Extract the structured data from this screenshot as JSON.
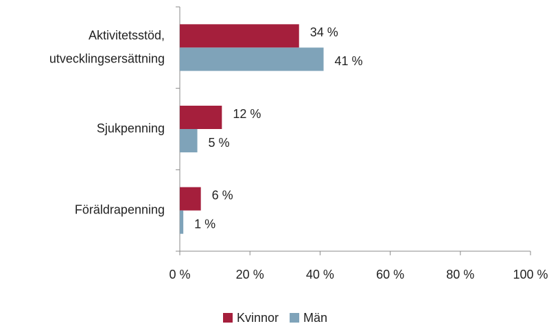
{
  "chart_data": {
    "type": "hbar",
    "categories": [
      "Aktivitetsstöd,\nutvecklingsersättning",
      "Sjukpenning",
      "Föräldrapenning"
    ],
    "series": [
      {
        "name": "Kvinnor",
        "color": "#a51f3c",
        "values": [
          34,
          12,
          6
        ],
        "value_labels": [
          "34 %",
          "12 %",
          "6 %"
        ]
      },
      {
        "name": "Män",
        "color": "#7fa3b9",
        "values": [
          41,
          5,
          1
        ],
        "value_labels": [
          "41 %",
          "5 %",
          "1 %"
        ]
      }
    ],
    "xlim": [
      0,
      100
    ],
    "xticks": [
      {
        "value": 0,
        "label": "0 %"
      },
      {
        "value": 20,
        "label": "20 %"
      },
      {
        "value": 40,
        "label": "40 %"
      },
      {
        "value": 60,
        "label": "60 %"
      },
      {
        "value": 80,
        "label": "80 %"
      },
      {
        "value": 100,
        "label": "100 %"
      }
    ],
    "legend": "bottom"
  }
}
